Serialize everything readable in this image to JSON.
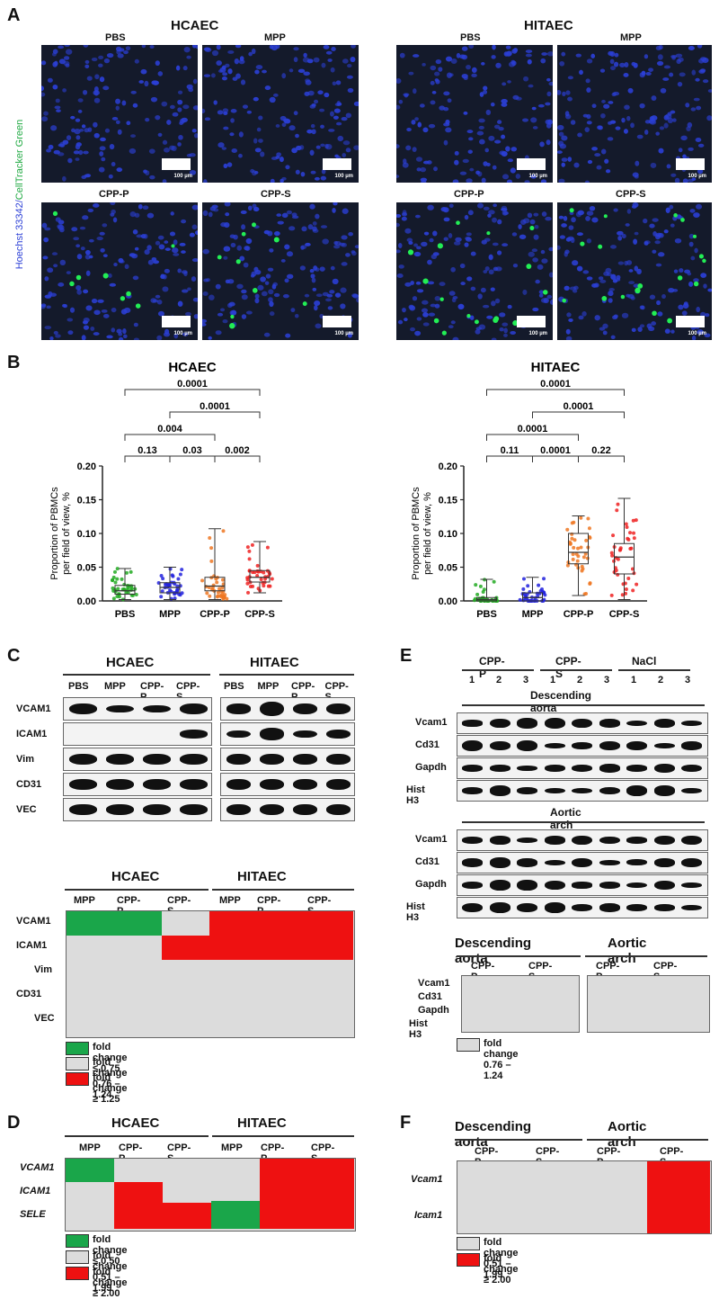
{
  "panelA": {
    "letter": "A",
    "y_stain": "Hoechst 33342/",
    "y_stain2": "CellTracker Green",
    "left_title": "HCAEC",
    "right_title": "HITAEC",
    "conditions": [
      "PBS",
      "MPP",
      "CPP-P",
      "CPP-S"
    ],
    "scale_label": "100 µm"
  },
  "panelB": {
    "letter": "B",
    "ylabel_line1": "Proportion of PBMCs",
    "ylabel_line2": "per field of view, %"
  },
  "chart_data": [
    {
      "type": "box",
      "title": "HCAEC",
      "categories": [
        "PBS",
        "MPP",
        "CPP-P",
        "CPP-S"
      ],
      "ylim": [
        0,
        0.2
      ],
      "yticks": [
        "0.00",
        "0.05",
        "0.10",
        "0.15",
        "0.20"
      ],
      "series": [
        {
          "name": "PBS",
          "color": "#22aa22",
          "min": 0.002,
          "q1": 0.01,
          "median": 0.015,
          "q3": 0.023,
          "max": 0.048
        },
        {
          "name": "MPP",
          "color": "#2222dd",
          "min": 0.002,
          "q1": 0.012,
          "median": 0.02,
          "q3": 0.027,
          "max": 0.05
        },
        {
          "name": "CPP-P",
          "color": "#ee7722",
          "min": 0.002,
          "q1": 0.015,
          "median": 0.022,
          "q3": 0.035,
          "max": 0.107
        },
        {
          "name": "CPP-S",
          "color": "#ee2222",
          "min": 0.012,
          "q1": 0.028,
          "median": 0.035,
          "q3": 0.045,
          "max": 0.088
        }
      ],
      "comparisons": [
        {
          "pair": [
            "PBS",
            "CPP-S"
          ],
          "p": "0.0001"
        },
        {
          "pair": [
            "MPP",
            "CPP-S"
          ],
          "p": "0.0001"
        },
        {
          "pair": [
            "PBS",
            "CPP-P"
          ],
          "p": "0.004"
        },
        {
          "pair": [
            "PBS",
            "MPP"
          ],
          "p": "0.13"
        },
        {
          "pair": [
            "MPP",
            "CPP-P"
          ],
          "p": "0.03"
        },
        {
          "pair": [
            "CPP-P",
            "CPP-S"
          ],
          "p": "0.002"
        }
      ]
    },
    {
      "type": "box",
      "title": "HITAEC",
      "categories": [
        "PBS",
        "MPP",
        "CPP-P",
        "CPP-S"
      ],
      "ylim": [
        0,
        0.2
      ],
      "yticks": [
        "0.00",
        "0.05",
        "0.10",
        "0.15",
        "0.20"
      ],
      "series": [
        {
          "name": "PBS",
          "color": "#22aa22",
          "min": 0.0,
          "q1": 0.0,
          "median": 0.002,
          "q3": 0.005,
          "max": 0.032
        },
        {
          "name": "MPP",
          "color": "#2222dd",
          "min": 0.0,
          "q1": 0.0,
          "median": 0.005,
          "q3": 0.012,
          "max": 0.035
        },
        {
          "name": "CPP-P",
          "color": "#ee7722",
          "min": 0.008,
          "q1": 0.055,
          "median": 0.072,
          "q3": 0.1,
          "max": 0.126
        },
        {
          "name": "CPP-S",
          "color": "#ee2222",
          "min": 0.002,
          "q1": 0.04,
          "median": 0.065,
          "q3": 0.085,
          "max": 0.152
        }
      ],
      "comparisons": [
        {
          "pair": [
            "PBS",
            "CPP-S"
          ],
          "p": "0.0001"
        },
        {
          "pair": [
            "MPP",
            "CPP-S"
          ],
          "p": "0.0001"
        },
        {
          "pair": [
            "PBS",
            "CPP-P"
          ],
          "p": "0.0001"
        },
        {
          "pair": [
            "PBS",
            "MPP"
          ],
          "p": "0.11"
        },
        {
          "pair": [
            "MPP",
            "CPP-P"
          ],
          "p": "0.0001"
        },
        {
          "pair": [
            "CPP-P",
            "CPP-S"
          ],
          "p": "0.22"
        }
      ]
    }
  ],
  "panelC": {
    "letter": "C",
    "left_title": "HCAEC",
    "right_title": "HITAEC",
    "lanes": [
      "PBS",
      "MPP",
      "CPP-P",
      "CPP-S"
    ],
    "proteins": [
      "VCAM1",
      "ICAM1",
      "Vim",
      "CD31",
      "VEC"
    ],
    "hm_left_title": "HCAEC",
    "hm_right_title": "HITAEC",
    "hm_cols": [
      "MPP",
      "CPP-P",
      "CPP-S",
      "MPP",
      "CPP-P",
      "CPP-S"
    ],
    "hm_values": [
      [
        "green",
        "green",
        "grey",
        "red",
        "red",
        "red"
      ],
      [
        "grey",
        "grey",
        "red",
        "red",
        "red",
        "red"
      ],
      [
        "grey",
        "grey",
        "grey",
        "grey",
        "grey",
        "grey"
      ],
      [
        "grey",
        "grey",
        "grey",
        "grey",
        "grey",
        "grey"
      ],
      [
        "grey",
        "grey",
        "grey",
        "grey",
        "grey",
        "grey"
      ]
    ],
    "legend": [
      "fold change ≤ 0.75",
      "fold change 0.76 – 1.24",
      "fold change ≥ 1.25"
    ]
  },
  "panelD": {
    "letter": "D",
    "left_title": "HCAEC",
    "right_title": "HITAEC",
    "cols": [
      "MPP",
      "CPP-P",
      "CPP-S",
      "MPP",
      "CPP-P",
      "CPP-S"
    ],
    "genes": [
      "VCAM1",
      "ICAM1",
      "SELE"
    ],
    "legend": [
      "fold change ≤ 0.50",
      "fold change 0.51 – 1.99",
      "fold change ≥ 2.00"
    ]
  },
  "panelE": {
    "letter": "E",
    "groups": [
      "CPP-P",
      "CPP-S",
      "NaCl"
    ],
    "lanes": [
      "1",
      "2",
      "3",
      "1",
      "2",
      "3",
      "1",
      "2",
      "3"
    ],
    "desc_title": "Descending aorta",
    "arch_title": "Aortic arch",
    "proteins": [
      "Vcam1",
      "Cd31",
      "Gapdh",
      "Hist H3"
    ],
    "hm_left_title": "Descending aorta",
    "hm_right_title": "Aortic arch",
    "hm_cols": [
      "CPP-P",
      "CPP-S",
      "CPP-P",
      "CPP-S"
    ],
    "legend": [
      "fold change 0.76 – 1.24"
    ]
  },
  "panelF": {
    "letter": "F",
    "left_title": "Descending aorta",
    "right_title": "Aortic arch",
    "cols": [
      "CPP-P",
      "CPP-S",
      "CPP-P",
      "CPP-S"
    ],
    "genes": [
      "Vcam1",
      "Icam1"
    ],
    "legend": [
      "fold change 0.51 – 1.99",
      "fold change ≥ 2.00"
    ]
  },
  "colors": {
    "green": "#1aa64a",
    "grey": "#dcdcdc",
    "red": "#ee1111",
    "microscopy_bg": "#141a2b",
    "nuclei": "#2b3fd6",
    "tracker": "#22ee55"
  }
}
